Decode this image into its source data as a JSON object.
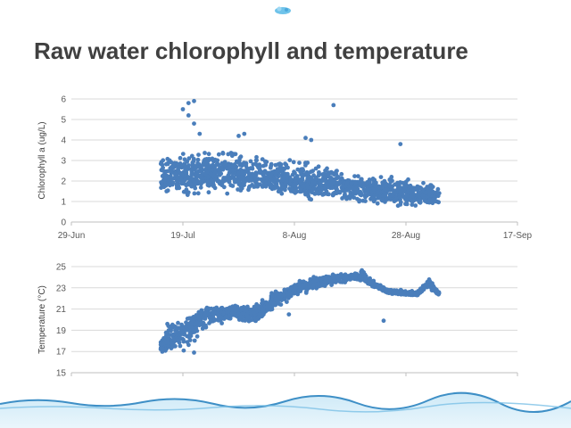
{
  "slide": {
    "title": "Raw water chlorophyll and temperature",
    "logo_icon": "water-drop-logo-icon",
    "footer_icon": "water-wave-icon"
  },
  "colors": {
    "series": "#4a7ebb",
    "title": "#404040",
    "grid": "#d9d9d9"
  },
  "chart_data": [
    {
      "type": "scatter",
      "ylabel": "Chlorophyll a (ug/L)",
      "xlim": [
        "29-Jun",
        "17-Sep"
      ],
      "ylim": [
        0,
        6
      ],
      "x_ticks": [
        "29-Jun",
        "19-Jul",
        "8-Aug",
        "28-Aug",
        "17-Sep"
      ],
      "y_ticks": [
        "0",
        "1",
        "2",
        "3",
        "4",
        "5",
        "6"
      ],
      "grid": "horizontal",
      "x_range_of_data": [
        "15-Jul",
        "3-Sep"
      ],
      "series": [
        {
          "color": "#4a7ebb",
          "trend": [
            {
              "x": "15-Jul",
              "y_low": 1.2,
              "y_mid": 2.3,
              "y_high": 3.6
            },
            {
              "x": "19-Jul",
              "y_low": 1.0,
              "y_mid": 2.2,
              "y_high": 3.7
            },
            {
              "x": "24-Jul",
              "y_low": 1.1,
              "y_mid": 2.4,
              "y_high": 3.8
            },
            {
              "x": "30-Jul",
              "y_low": 1.2,
              "y_mid": 2.3,
              "y_high": 3.6
            },
            {
              "x": "4-Aug",
              "y_low": 1.2,
              "y_mid": 2.1,
              "y_high": 3.3
            },
            {
              "x": "9-Aug",
              "y_low": 1.0,
              "y_mid": 2.0,
              "y_high": 3.1
            },
            {
              "x": "15-Aug",
              "y_low": 0.9,
              "y_mid": 1.8,
              "y_high": 2.8
            },
            {
              "x": "20-Aug",
              "y_low": 0.8,
              "y_mid": 1.6,
              "y_high": 2.4
            },
            {
              "x": "26-Aug",
              "y_low": 0.7,
              "y_mid": 1.5,
              "y_high": 2.4
            },
            {
              "x": "31-Aug",
              "y_low": 0.6,
              "y_mid": 1.3,
              "y_high": 2.2
            },
            {
              "x": "3-Sep",
              "y_low": 0.5,
              "y_mid": 1.2,
              "y_high": 2.0
            }
          ],
          "outliers": [
            {
              "x": "20-Jul",
              "y": 5.8
            },
            {
              "x": "21-Jul",
              "y": 5.9
            },
            {
              "x": "19-Jul",
              "y": 5.5
            },
            {
              "x": "20-Jul",
              "y": 5.2
            },
            {
              "x": "22-Jul",
              "y": 4.3
            },
            {
              "x": "21-Jul",
              "y": 4.8
            },
            {
              "x": "15-Aug",
              "y": 5.7
            },
            {
              "x": "10-Aug",
              "y": 4.1
            },
            {
              "x": "11-Aug",
              "y": 4.0
            },
            {
              "x": "27-Aug",
              "y": 3.8
            },
            {
              "x": "29-Jul",
              "y": 4.2
            },
            {
              "x": "30-Jul",
              "y": 4.3
            }
          ]
        }
      ]
    },
    {
      "type": "scatter",
      "ylabel": "Temperature (°C)",
      "xlim": [
        "29-Jun",
        "17-Sep"
      ],
      "ylim": [
        15,
        25
      ],
      "y_ticks": [
        "15",
        "17",
        "19",
        "21",
        "23",
        "25"
      ],
      "grid": "horizontal",
      "series": [
        {
          "color": "#4a7ebb",
          "trend": [
            {
              "x": "15-Jul",
              "y_low": 16.7,
              "y_mid": 17.4,
              "y_high": 18.3
            },
            {
              "x": "17-Jul",
              "y_low": 16.7,
              "y_mid": 18.0,
              "y_high": 21.2
            },
            {
              "x": "19-Jul",
              "y_low": 16.5,
              "y_mid": 18.5,
              "y_high": 20.0
            },
            {
              "x": "21-Jul",
              "y_low": 17.5,
              "y_mid": 19.8,
              "y_high": 21.0
            },
            {
              "x": "24-Jul",
              "y_low": 19.0,
              "y_mid": 20.5,
              "y_high": 21.5
            },
            {
              "x": "28-Jul",
              "y_low": 19.8,
              "y_mid": 20.8,
              "y_high": 21.5
            },
            {
              "x": "1-Aug",
              "y_low": 19.5,
              "y_mid": 20.4,
              "y_high": 21.5
            },
            {
              "x": "4-Aug",
              "y_low": 20.5,
              "y_mid": 21.8,
              "y_high": 22.8
            },
            {
              "x": "8-Aug",
              "y_low": 22.0,
              "y_mid": 22.8,
              "y_high": 23.6
            },
            {
              "x": "12-Aug",
              "y_low": 22.8,
              "y_mid": 23.5,
              "y_high": 24.3
            },
            {
              "x": "16-Aug",
              "y_low": 23.4,
              "y_mid": 23.9,
              "y_high": 24.4
            },
            {
              "x": "20-Aug",
              "y_low": 23.6,
              "y_mid": 24.0,
              "y_high": 24.8
            },
            {
              "x": "22-Aug",
              "y_low": 23.0,
              "y_mid": 23.4,
              "y_high": 24.0
            },
            {
              "x": "25-Aug",
              "y_low": 22.4,
              "y_mid": 22.6,
              "y_high": 23.0
            },
            {
              "x": "30-Aug",
              "y_low": 22.2,
              "y_mid": 22.4,
              "y_high": 22.7
            },
            {
              "x": "1-Sep",
              "y_low": 22.8,
              "y_mid": 23.5,
              "y_high": 24.0
            },
            {
              "x": "3-Sep",
              "y_low": 22.2,
              "y_mid": 22.4,
              "y_high": 22.6
            }
          ],
          "outliers": [
            {
              "x": "24-Aug",
              "y": 19.9
            },
            {
              "x": "21-Jul",
              "y": 16.9
            },
            {
              "x": "7-Aug",
              "y": 20.5
            }
          ]
        }
      ]
    }
  ]
}
